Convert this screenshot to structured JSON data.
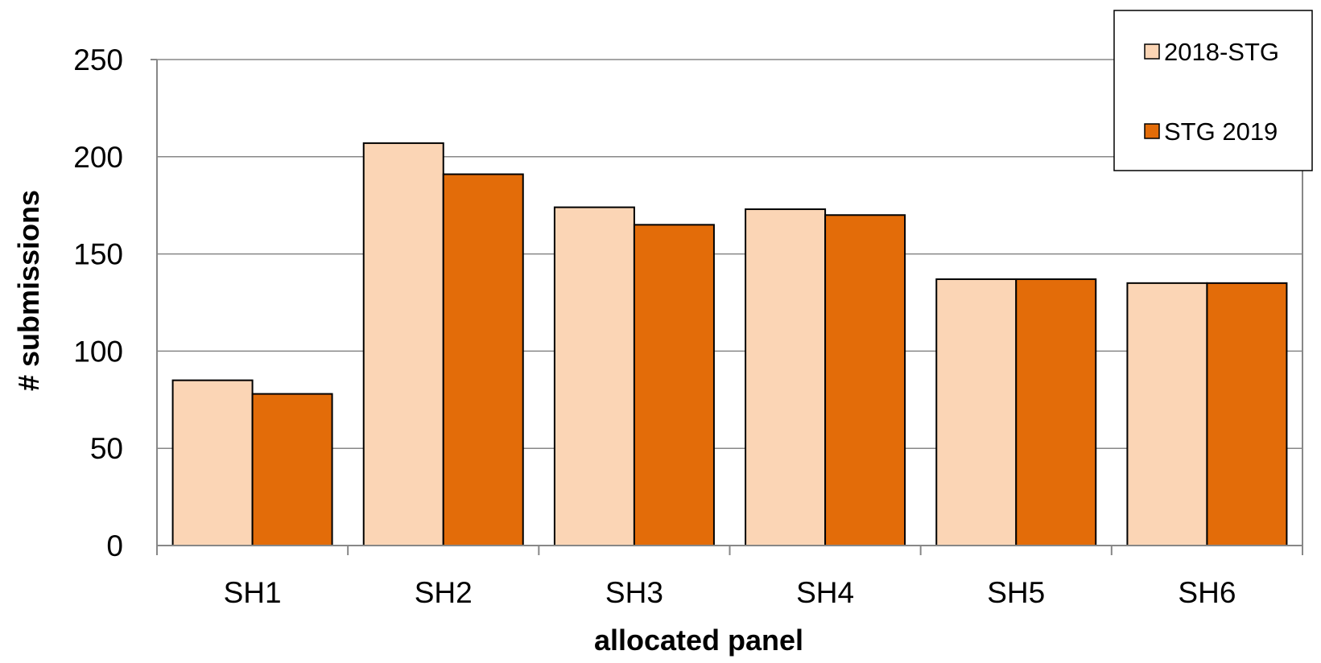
{
  "chart_data": {
    "type": "bar",
    "categories": [
      "SH1",
      "SH2",
      "SH3",
      "SH4",
      "SH5",
      "SH6"
    ],
    "series": [
      {
        "name": "2018-STG",
        "color": "#FBD5B5",
        "values": [
          85,
          207,
          174,
          173,
          137,
          135
        ]
      },
      {
        "name": "STG 2019",
        "color": "#E36C09",
        "values": [
          78,
          191,
          165,
          170,
          137,
          135
        ]
      }
    ],
    "title": "",
    "xlabel": "allocated panel",
    "ylabel": "# submissions",
    "ylim": [
      0,
      250
    ],
    "yticks": [
      0,
      50,
      100,
      150,
      200,
      250
    ],
    "grid": true,
    "legend_position": "top-right"
  }
}
